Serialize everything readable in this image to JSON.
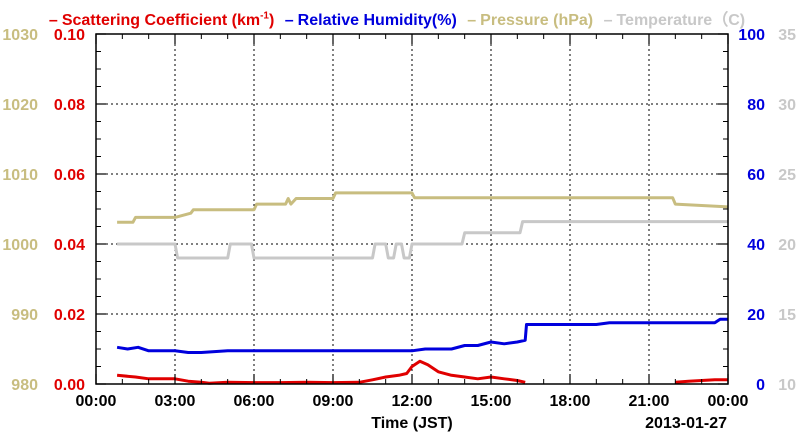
{
  "chart_data": {
    "type": "line",
    "legend": [
      {
        "dash": "–",
        "label": "Scattering Coefficient (km",
        "sup": "-1",
        "tail": ")",
        "color": "#e00000"
      },
      {
        "dash": "–",
        "label": "Relative Humidity(%)",
        "sup": "",
        "tail": "",
        "color": "#0000dd"
      },
      {
        "dash": "–",
        "label": "Pressure (hPa)",
        "sup": "",
        "tail": "",
        "color": "#c8bd80"
      },
      {
        "dash": "–",
        "label": "Temperature（C)",
        "sup": "",
        "tail": "",
        "color": "#c8c8c8"
      }
    ],
    "xlabel": "Time (JST)",
    "date_label": "2013-01-27",
    "x_ticks": [
      "00:00",
      "03:00",
      "06:00",
      "09:00",
      "12:00",
      "15:00",
      "18:00",
      "21:00",
      "00:00"
    ],
    "xlim": [
      0,
      24
    ],
    "axes": {
      "left_pressure": {
        "ticks": [
          "980",
          "990",
          "1000",
          "1010",
          "1020",
          "1030"
        ],
        "ylim": [
          980,
          1030
        ],
        "color": "#c8bd80"
      },
      "left_scattering": {
        "ticks": [
          "0.00",
          "0.02",
          "0.04",
          "0.06",
          "0.08",
          "0.10"
        ],
        "ylim": [
          0,
          0.1
        ],
        "color": "#e00000"
      },
      "right_rh": {
        "ticks": [
          "0",
          "20",
          "40",
          "60",
          "80",
          "100"
        ],
        "ylim": [
          0,
          100
        ],
        "color": "#0000dd"
      },
      "right_temp": {
        "ticks": [
          "10",
          "15",
          "20",
          "25",
          "30",
          "35"
        ],
        "ylim": [
          10,
          35
        ],
        "color": "#c8c8c8"
      }
    },
    "grid": true,
    "series": [
      {
        "name": "Scattering Coefficient",
        "axis": "left_scattering",
        "color": "#e00000",
        "x": [
          0.8,
          1.5,
          2.0,
          3.0,
          3.5,
          4.0,
          4.3,
          5.0,
          6.0,
          7.0,
          8.0,
          9.0,
          10.0,
          10.5,
          11.0,
          11.5,
          11.8,
          12.0,
          12.3,
          12.6,
          13.0,
          13.5,
          14.0,
          14.5,
          15.0,
          15.5,
          16.0,
          16.3
        ],
        "y": [
          0.0025,
          0.002,
          0.0015,
          0.0015,
          0.0008,
          0.0005,
          0.0002,
          0.0005,
          0.0004,
          0.0004,
          0.0005,
          0.0004,
          0.0005,
          0.0012,
          0.002,
          0.0025,
          0.003,
          0.005,
          0.0065,
          0.0055,
          0.0035,
          0.0025,
          0.002,
          0.0015,
          0.002,
          0.0015,
          0.001,
          0.0005
        ]
      },
      {
        "name": "Scattering Coefficient tail",
        "axis": "left_scattering",
        "color": "#e00000",
        "x": [
          22.0,
          22.5,
          23.0,
          23.5,
          24.0
        ],
        "y": [
          0.0005,
          0.0008,
          0.001,
          0.0012,
          0.0012
        ]
      },
      {
        "name": "Relative Humidity",
        "axis": "right_rh",
        "color": "#0000dd",
        "x": [
          0.8,
          1.2,
          1.6,
          2.0,
          2.5,
          3.0,
          3.5,
          4.0,
          5.0,
          6.0,
          7.0,
          8.0,
          9.0,
          10.0,
          11.0,
          12.0,
          12.5,
          13.0,
          13.5,
          14.0,
          14.5,
          15.0,
          15.5,
          16.0,
          16.3,
          16.35,
          17.0,
          19.0,
          19.5,
          20.0,
          22.0,
          23.5,
          23.7,
          24.0
        ],
        "y": [
          10.5,
          10.0,
          10.5,
          9.5,
          9.5,
          9.5,
          9.0,
          9.0,
          9.5,
          9.5,
          9.5,
          9.5,
          9.5,
          9.5,
          9.5,
          9.5,
          10.0,
          10.0,
          10.0,
          11.0,
          11.0,
          12.0,
          11.5,
          12.0,
          12.5,
          17.0,
          17.0,
          17.0,
          17.5,
          17.5,
          17.5,
          17.5,
          18.5,
          18.5
        ]
      },
      {
        "name": "Pressure",
        "axis": "left_pressure",
        "color": "#c8bd80",
        "x": [
          0.8,
          1.4,
          1.5,
          3.0,
          3.6,
          3.7,
          6.0,
          6.1,
          7.2,
          7.3,
          7.4,
          7.6,
          7.7,
          9.0,
          9.1,
          12.0,
          12.1,
          15.0,
          18.0,
          21.0,
          21.9,
          22.0,
          24.0
        ],
        "y": [
          1003.1,
          1003.1,
          1003.8,
          1003.8,
          1004.4,
          1004.9,
          1004.9,
          1005.7,
          1005.7,
          1006.5,
          1005.7,
          1006.5,
          1006.5,
          1006.5,
          1007.3,
          1007.3,
          1006.6,
          1006.6,
          1006.6,
          1006.6,
          1006.6,
          1005.7,
          1005.3
        ]
      },
      {
        "name": "Temperature",
        "axis": "right_temp",
        "color": "#c8c8c8",
        "x": [
          0.8,
          3.0,
          3.1,
          5.0,
          5.1,
          5.9,
          6.0,
          10.0,
          10.5,
          10.6,
          11.0,
          11.1,
          11.3,
          11.4,
          11.6,
          11.7,
          11.9,
          12.0,
          12.1,
          13.9,
          14.0,
          16.1,
          16.2,
          24.0
        ],
        "y": [
          20.0,
          20.0,
          19.0,
          19.0,
          20.0,
          20.0,
          19.0,
          19.0,
          19.0,
          20.0,
          20.0,
          19.0,
          19.0,
          20.0,
          20.0,
          19.0,
          19.0,
          20.0,
          20.0,
          20.0,
          20.8,
          20.8,
          21.6,
          21.6
        ]
      }
    ]
  }
}
